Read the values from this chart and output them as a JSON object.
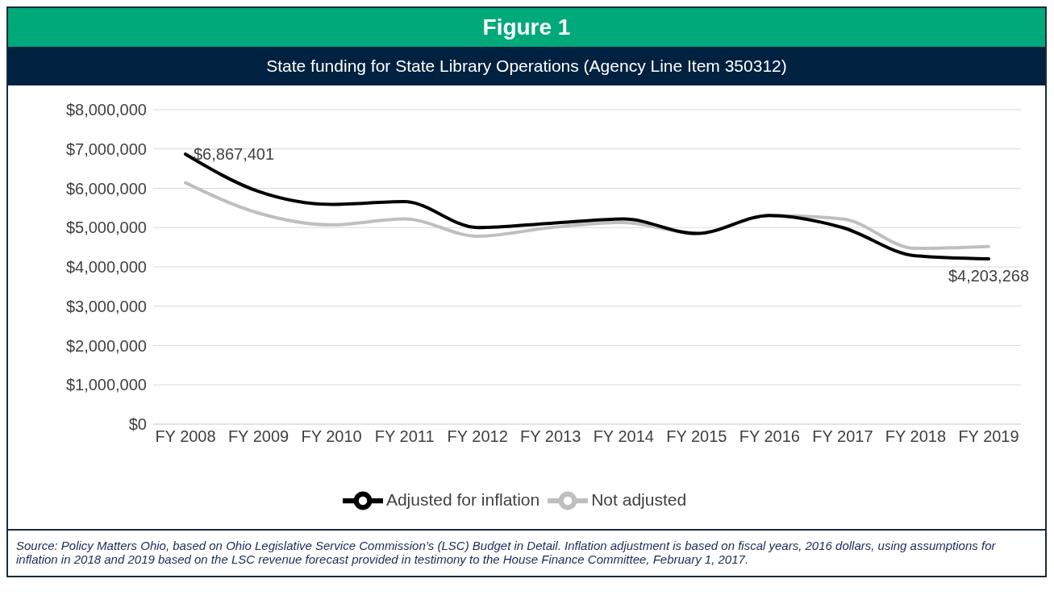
{
  "chart_data": {
    "type": "line",
    "title": "Figure 1",
    "subtitle": "State funding for State Library Operations (Agency Line Item 350312)",
    "categories": [
      "FY 2008",
      "FY 2009",
      "FY 2010",
      "FY 2011",
      "FY 2012",
      "FY 2013",
      "FY 2014",
      "FY 2015",
      "FY 2016",
      "FY 2017",
      "FY 2018",
      "FY 2019"
    ],
    "series": [
      {
        "name": "Not adjusted",
        "color": "#bfbfbf",
        "values": [
          6140000,
          5370000,
          5070000,
          5220000,
          4780000,
          5000000,
          5130000,
          4850000,
          5310000,
          5220000,
          4470000,
          4520000
        ]
      },
      {
        "name": "Adjusted for inflation",
        "color": "#000000",
        "values": [
          6867401,
          5920000,
          5590000,
          5660000,
          5000000,
          5110000,
          5220000,
          4850000,
          5310000,
          5000000,
          4280000,
          4203268
        ]
      }
    ],
    "ylim": [
      0,
      8000000
    ],
    "yticks": [
      {
        "value": 0,
        "label": "$0"
      },
      {
        "value": 1000000,
        "label": "$1,000,000"
      },
      {
        "value": 2000000,
        "label": "$2,000,000"
      },
      {
        "value": 3000000,
        "label": "$3,000,000"
      },
      {
        "value": 4000000,
        "label": "$4,000,000"
      },
      {
        "value": 5000000,
        "label": "$5,000,000"
      },
      {
        "value": 6000000,
        "label": "$6,000,000"
      },
      {
        "value": 7000000,
        "label": "$7,000,000"
      },
      {
        "value": 8000000,
        "label": "$8,000,000"
      }
    ],
    "grid": "y",
    "legend": "bottom",
    "marker": "none",
    "line_style": "solid",
    "annotations": [
      {
        "text": "$6,867,401",
        "x": "FY 2008",
        "y": 6867401
      },
      {
        "text": "$4,203,268",
        "x": "FY 2019",
        "y": 4203268
      },
      "Source: Policy Matters Ohio, based on Ohio Legislative Service Commission’s (LSC) Budget in Detail.  Inflation adjustment is based on fiscal years, 2016 dollars, using assumptions for inflation in 2018 and 2019 based on the LSC revenue forecast provided in testimony to the House Finance Committee, February 1, 2017."
    ]
  }
}
